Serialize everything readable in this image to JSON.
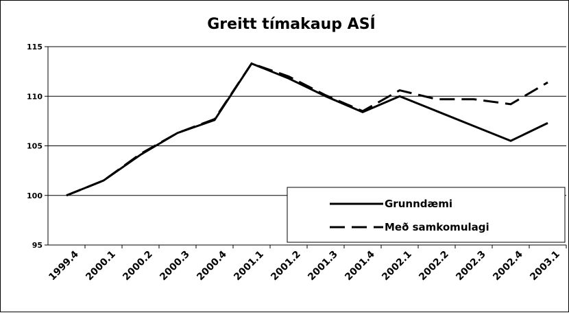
{
  "chart_data": {
    "type": "line",
    "title": "Greitt tímakaup ASÍ",
    "categories": [
      "1999.4",
      "2000.1",
      "2000.2",
      "2000.3",
      "2000.4",
      "2001.1",
      "2001.2",
      "2001.3",
      "2001.4",
      "2002.1",
      "2002.2",
      "2002.3",
      "2002.4",
      "2003.1"
    ],
    "series": [
      {
        "name": "Grunndæmi",
        "color": "#000000",
        "style": "solid",
        "values": [
          100,
          101.5,
          104.1,
          106.3,
          107.6,
          113.3,
          111.8,
          110,
          108.4,
          110,
          108.5,
          107,
          105.5,
          107.3
        ]
      },
      {
        "name": "Með samkomulagi",
        "color": "#000000",
        "style": "dashed",
        "values": [
          100,
          101.5,
          104.2,
          106.3,
          107.7,
          113.3,
          112,
          110.1,
          108.5,
          110.6,
          109.7,
          109.7,
          109.2,
          111.4
        ]
      }
    ],
    "ylim": [
      95,
      115
    ],
    "yticks": [
      95,
      100,
      105,
      110,
      115
    ],
    "grid": true,
    "legend": "lower right"
  }
}
